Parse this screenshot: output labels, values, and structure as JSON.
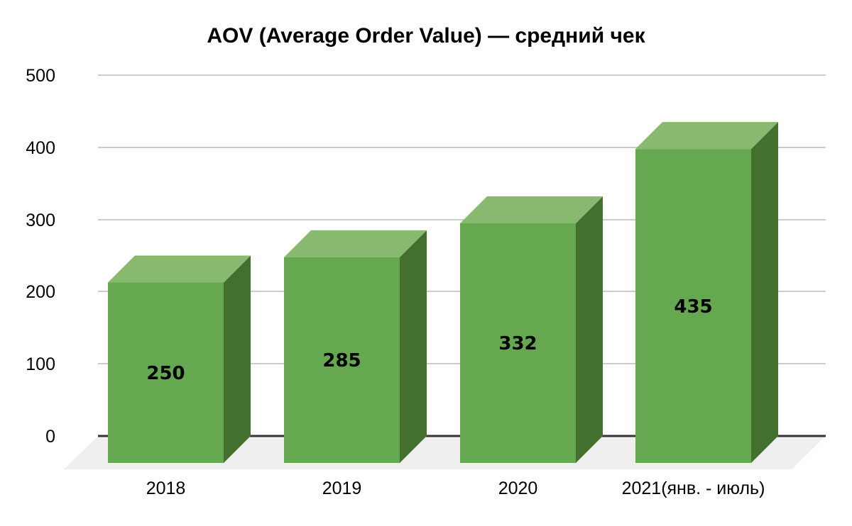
{
  "page": {
    "background": "#ffffff"
  },
  "chart_data": {
    "type": "bar",
    "variant": "3d-column",
    "title": "AOV (Average Order Value) — средний чек",
    "categories": [
      "2018",
      "2019",
      "2020",
      "2021(янв. - июль)"
    ],
    "values": [
      250,
      285,
      332,
      435
    ],
    "xlabel": "",
    "ylabel": "",
    "ylim": [
      0,
      500
    ],
    "yticks": [
      0,
      100,
      200,
      300,
      400,
      500
    ],
    "grid": true,
    "legend_position": "none",
    "value_labels_shown": true,
    "colors": {
      "bar_front": "#66a84f",
      "bar_top": "#87ba6e",
      "bar_side": "#44702f",
      "gridline": "#cccccc",
      "axis_line": "#333333",
      "floor": "#efefef",
      "label_text": "#000000",
      "background": "#ffffff"
    }
  }
}
